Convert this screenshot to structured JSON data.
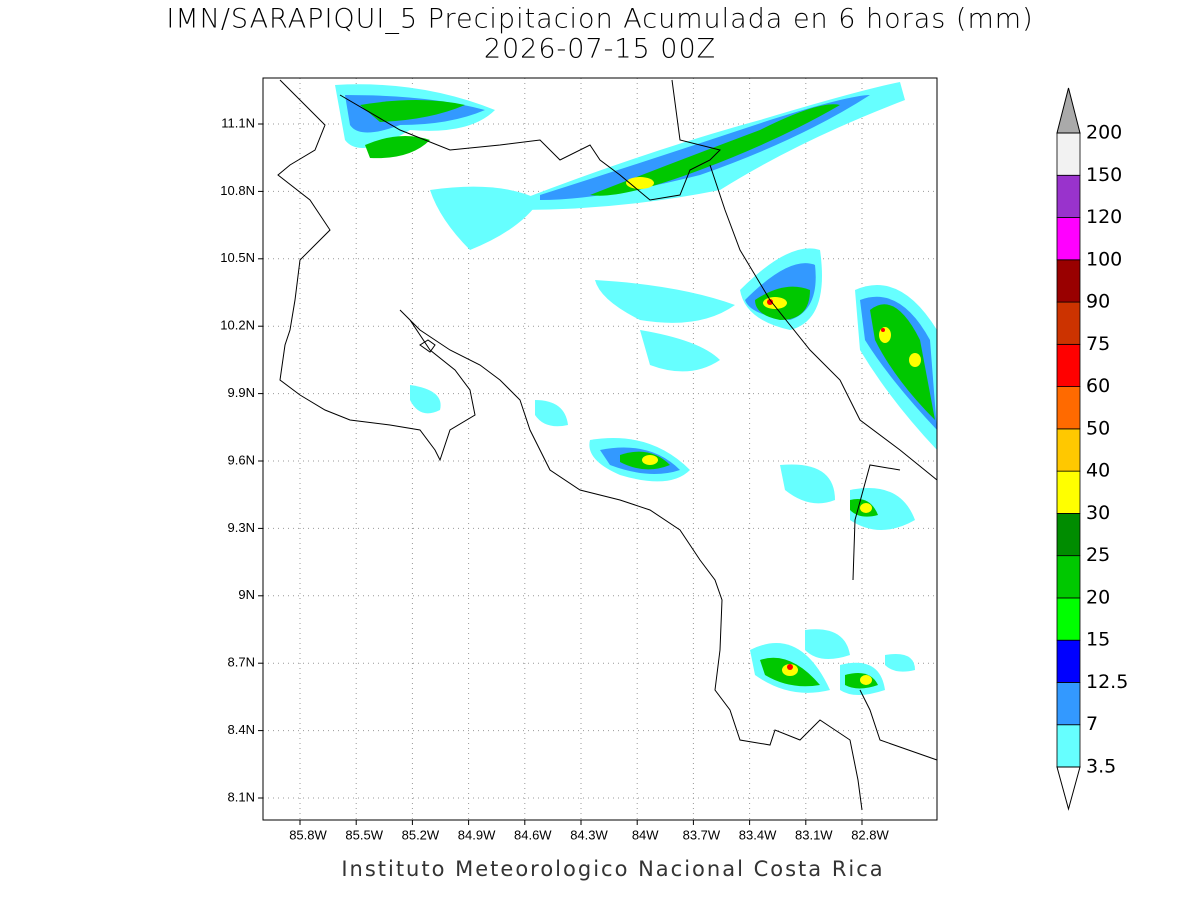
{
  "title": "IMN/SARAPIQUI_5 Precipitacion Acumulada en 6 horas (mm)",
  "subtitle": "2026-07-15 00Z",
  "map": {
    "lon_ticks": [
      "85.8W",
      "85.5W",
      "85.2W",
      "84.9W",
      "84.6W",
      "84.3W",
      "84W",
      "83.7W",
      "83.4W",
      "83.1W",
      "82.8W"
    ],
    "lat_ticks": [
      "11.1N",
      "10.8N",
      "10.5N",
      "10.2N",
      "9.9N",
      "9.6N",
      "9.3N",
      "9N",
      "8.7N",
      "8.4N",
      "8.1N"
    ]
  },
  "colorbar": {
    "levels": [
      3.5,
      7,
      12.5,
      15,
      20,
      25,
      30,
      40,
      50,
      60,
      75,
      90,
      100,
      120,
      150,
      200
    ],
    "colors": [
      "#66ffff",
      "#3399ff",
      "#0000ff",
      "#00ff00",
      "#00c800",
      "#008c00",
      "#ffff00",
      "#ffc800",
      "#ff6a00",
      "#ff0000",
      "#cc3300",
      "#990000",
      "#ff00ff",
      "#9933cc",
      "#f2f2f2"
    ],
    "under_color": "#ffffff",
    "over_color": "#aaaaaa"
  },
  "footer": "Instituto Meteorologico Nacional Costa Rica"
}
